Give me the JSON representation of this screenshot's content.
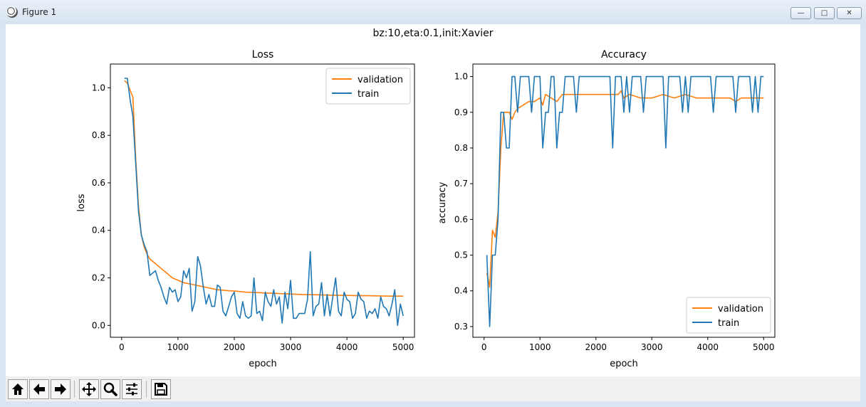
{
  "window": {
    "title": "Figure 1",
    "minimize_label": "—",
    "maximize_label": "□",
    "close_label": "✕"
  },
  "figure": {
    "suptitle": "bz:10,eta:0.1,init:Xavier"
  },
  "chart_data": [
    {
      "type": "line",
      "title": "Loss",
      "xlabel": "epoch",
      "ylabel": "loss",
      "xlim": [
        -200,
        5200
      ],
      "ylim": [
        -0.05,
        1.1
      ],
      "xticks": [
        0,
        1000,
        2000,
        3000,
        4000,
        5000
      ],
      "yticks": [
        0.0,
        0.2,
        0.4,
        0.6,
        0.8,
        1.0
      ],
      "xtick_labels": [
        "0",
        "1000",
        "2000",
        "3000",
        "4000",
        "5000"
      ],
      "ytick_labels": [
        "0.0",
        "0.2",
        "0.4",
        "0.6",
        "0.8",
        "1.0"
      ],
      "legend_position": "upper-right",
      "grid": false,
      "series": [
        {
          "name": "validation",
          "color": "#ff7f0e",
          "x": [
            50,
            100,
            150,
            200,
            250,
            300,
            350,
            400,
            450,
            500,
            550,
            600,
            700,
            800,
            900,
            1000,
            1100,
            1200,
            1300,
            1400,
            1500,
            1600,
            1700,
            1800,
            1900,
            2000,
            2200,
            2400,
            2600,
            2800,
            3000,
            3200,
            3400,
            3600,
            3800,
            4000,
            4200,
            4400,
            4600,
            4800,
            5000
          ],
          "y": [
            1.03,
            1.02,
            0.99,
            0.96,
            0.7,
            0.5,
            0.38,
            0.33,
            0.3,
            0.28,
            0.27,
            0.26,
            0.24,
            0.22,
            0.2,
            0.19,
            0.18,
            0.175,
            0.17,
            0.165,
            0.16,
            0.155,
            0.15,
            0.148,
            0.146,
            0.145,
            0.14,
            0.138,
            0.136,
            0.134,
            0.132,
            0.13,
            0.129,
            0.128,
            0.127,
            0.126,
            0.125,
            0.125,
            0.124,
            0.123,
            0.123
          ]
        },
        {
          "name": "train",
          "color": "#1f77b4",
          "x": [
            50,
            100,
            150,
            200,
            250,
            300,
            350,
            400,
            450,
            500,
            550,
            600,
            650,
            700,
            750,
            800,
            850,
            900,
            950,
            1000,
            1050,
            1100,
            1150,
            1200,
            1250,
            1300,
            1350,
            1400,
            1450,
            1500,
            1550,
            1600,
            1650,
            1700,
            1750,
            1800,
            1850,
            1900,
            1950,
            2000,
            2050,
            2100,
            2150,
            2200,
            2250,
            2300,
            2350,
            2400,
            2450,
            2500,
            2550,
            2600,
            2650,
            2700,
            2750,
            2800,
            2850,
            2900,
            2950,
            3000,
            3050,
            3100,
            3150,
            3200,
            3250,
            3300,
            3350,
            3400,
            3450,
            3500,
            3550,
            3600,
            3650,
            3700,
            3750,
            3800,
            3850,
            3900,
            3950,
            4000,
            4050,
            4100,
            4150,
            4200,
            4250,
            4300,
            4350,
            4400,
            4450,
            4500,
            4550,
            4600,
            4650,
            4700,
            4750,
            4800,
            4850,
            4900,
            4950,
            5000
          ],
          "y": [
            1.04,
            1.04,
            0.95,
            0.88,
            0.68,
            0.48,
            0.38,
            0.34,
            0.31,
            0.21,
            0.22,
            0.23,
            0.19,
            0.16,
            0.12,
            0.09,
            0.16,
            0.14,
            0.15,
            0.1,
            0.12,
            0.23,
            0.2,
            0.24,
            0.06,
            0.1,
            0.29,
            0.25,
            0.16,
            0.09,
            0.13,
            0.08,
            0.08,
            0.17,
            0.16,
            0.06,
            0.04,
            0.08,
            0.12,
            0.14,
            0.05,
            0.03,
            0.1,
            0.04,
            0.03,
            0.04,
            0.2,
            0.05,
            0.06,
            0.02,
            0.14,
            0.1,
            0.08,
            0.15,
            0.09,
            0.12,
            0.01,
            0.14,
            0.07,
            0.19,
            0.03,
            0.03,
            0.05,
            0.05,
            0.05,
            0.11,
            0.31,
            0.04,
            0.08,
            0.09,
            0.18,
            0.04,
            0.13,
            0.04,
            0.12,
            0.2,
            0.06,
            0.04,
            0.14,
            0.11,
            0.1,
            0.03,
            0.05,
            0.14,
            0.11,
            0.1,
            0.03,
            0.06,
            0.05,
            0.07,
            0.03,
            0.12,
            0.08,
            0.07,
            0.04,
            0.09,
            0.15,
            0.0,
            0.09,
            0.04
          ]
        }
      ]
    },
    {
      "type": "line",
      "title": "Accuracy",
      "xlabel": "epoch",
      "ylabel": "accuracy",
      "xlim": [
        -200,
        5200
      ],
      "ylim": [
        0.27,
        1.035
      ],
      "xticks": [
        0,
        1000,
        2000,
        3000,
        4000,
        5000
      ],
      "yticks": [
        0.3,
        0.4,
        0.5,
        0.6,
        0.7,
        0.8,
        0.9,
        1.0
      ],
      "xtick_labels": [
        "0",
        "1000",
        "2000",
        "3000",
        "4000",
        "5000"
      ],
      "ytick_labels": [
        "0.3",
        "0.4",
        "0.5",
        "0.6",
        "0.7",
        "0.8",
        "0.9",
        "1.0"
      ],
      "legend_position": "lower-right",
      "grid": false,
      "series": [
        {
          "name": "validation",
          "color": "#ff7f0e",
          "x": [
            50,
            100,
            150,
            200,
            250,
            300,
            350,
            400,
            450,
            500,
            550,
            600,
            700,
            800,
            900,
            1000,
            1050,
            1100,
            1200,
            1300,
            1400,
            1500,
            1600,
            1700,
            1800,
            1900,
            2000,
            2100,
            2200,
            2300,
            2400,
            2450,
            2500,
            2600,
            2800,
            3000,
            3200,
            3400,
            3600,
            3800,
            4000,
            4200,
            4400,
            4500,
            4600,
            4800,
            5000
          ],
          "y": [
            0.45,
            0.41,
            0.57,
            0.55,
            0.62,
            0.8,
            0.9,
            0.9,
            0.9,
            0.88,
            0.9,
            0.91,
            0.92,
            0.93,
            0.93,
            0.94,
            0.92,
            0.95,
            0.94,
            0.93,
            0.95,
            0.95,
            0.95,
            0.95,
            0.95,
            0.95,
            0.95,
            0.95,
            0.95,
            0.95,
            0.95,
            0.96,
            0.94,
            0.95,
            0.94,
            0.94,
            0.95,
            0.94,
            0.95,
            0.94,
            0.94,
            0.94,
            0.94,
            0.93,
            0.94,
            0.94,
            0.94
          ]
        },
        {
          "name": "train",
          "color": "#1f77b4",
          "x": [
            50,
            100,
            150,
            200,
            250,
            300,
            350,
            400,
            450,
            500,
            550,
            600,
            650,
            700,
            750,
            800,
            850,
            900,
            950,
            1000,
            1050,
            1100,
            1150,
            1200,
            1250,
            1300,
            1350,
            1400,
            1450,
            1500,
            1550,
            1600,
            1650,
            1700,
            1750,
            1800,
            1850,
            1900,
            1950,
            2000,
            2050,
            2100,
            2150,
            2200,
            2250,
            2300,
            2350,
            2400,
            2450,
            2500,
            2550,
            2600,
            2650,
            2700,
            2750,
            2800,
            2850,
            2900,
            2950,
            3000,
            3050,
            3100,
            3150,
            3200,
            3250,
            3300,
            3350,
            3400,
            3450,
            3500,
            3550,
            3600,
            3650,
            3700,
            3750,
            3800,
            3850,
            3900,
            3950,
            4000,
            4050,
            4100,
            4150,
            4200,
            4250,
            4300,
            4350,
            4400,
            4450,
            4500,
            4550,
            4600,
            4650,
            4700,
            4750,
            4800,
            4850,
            4900,
            4950,
            5000
          ],
          "y": [
            0.5,
            0.3,
            0.5,
            0.5,
            0.6,
            0.9,
            0.9,
            0.8,
            0.8,
            1.0,
            1.0,
            0.9,
            1.0,
            1.0,
            1.0,
            1.0,
            0.9,
            1.0,
            1.0,
            1.0,
            0.8,
            0.9,
            0.9,
            1.0,
            1.0,
            0.8,
            0.9,
            0.9,
            1.0,
            1.0,
            1.0,
            1.0,
            0.9,
            1.0,
            1.0,
            1.0,
            1.0,
            1.0,
            1.0,
            1.0,
            1.0,
            1.0,
            1.0,
            1.0,
            1.0,
            0.8,
            1.0,
            1.0,
            1.0,
            0.9,
            1.0,
            0.9,
            1.0,
            1.0,
            1.0,
            1.0,
            0.9,
            1.0,
            1.0,
            1.0,
            1.0,
            1.0,
            1.0,
            1.0,
            0.8,
            1.0,
            1.0,
            1.0,
            1.0,
            1.0,
            0.9,
            1.0,
            0.9,
            1.0,
            1.0,
            1.0,
            1.0,
            1.0,
            1.0,
            1.0,
            1.0,
            0.9,
            1.0,
            1.0,
            1.0,
            1.0,
            1.0,
            1.0,
            1.0,
            0.9,
            1.0,
            1.0,
            1.0,
            1.0,
            1.0,
            0.9,
            1.0,
            0.9,
            1.0,
            1.0
          ]
        }
      ]
    }
  ],
  "toolbar": {
    "buttons": [
      "home-icon",
      "back-arrow-icon",
      "forward-arrow-icon",
      "pan-icon",
      "zoom-icon",
      "configure-subplots-icon",
      "save-icon"
    ]
  }
}
